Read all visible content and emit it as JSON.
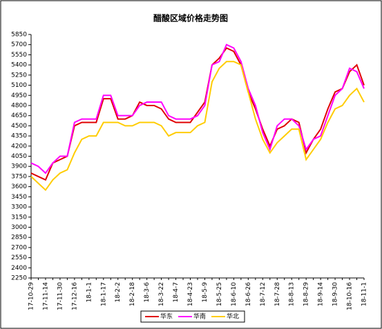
{
  "chart_data": {
    "type": "line",
    "title": "醋酸区域价格走势图",
    "categories": [
      "17-10-29",
      null,
      "17-11-14",
      null,
      "17-11-30",
      null,
      "17-12-16",
      null,
      "18-1-1",
      null,
      "18-1-17",
      null,
      "18-2-2",
      null,
      "18-2-18",
      null,
      "18-3-6",
      null,
      "18-3-22",
      null,
      "18-4-7",
      null,
      "18-4-23",
      null,
      "18-5-9",
      null,
      "18-5-25",
      null,
      "18-6-10",
      null,
      "18-6-26",
      null,
      "18-7-12",
      null,
      "18-7-28",
      null,
      "18-8-13",
      null,
      "18-8-29",
      null,
      "18-9-14",
      null,
      "18-9-30",
      null,
      "18-10-16",
      null,
      "18-11-1"
    ],
    "series": [
      {
        "name": "华东",
        "color": "#e00000",
        "values": [
          3800,
          3750,
          3700,
          3950,
          4000,
          4050,
          4500,
          4550,
          4550,
          4550,
          4900,
          4900,
          4600,
          4600,
          4650,
          4850,
          4800,
          4800,
          4750,
          4600,
          4550,
          4550,
          4550,
          4700,
          4850,
          5400,
          5500,
          5650,
          5600,
          5400,
          5000,
          4750,
          4450,
          4200,
          4450,
          4500,
          4600,
          4550,
          4100,
          4300,
          4450,
          4750,
          5000,
          5050,
          5300,
          5400,
          5100
        ]
      },
      {
        "name": "华南",
        "color": "#ff00ff",
        "values": [
          3950,
          3900,
          3800,
          3950,
          4050,
          4050,
          4550,
          4600,
          4600,
          4600,
          4950,
          4950,
          4650,
          4650,
          4650,
          4800,
          4850,
          4850,
          4850,
          4650,
          4600,
          4600,
          4600,
          4650,
          4800,
          5400,
          5450,
          5700,
          5650,
          5450,
          5050,
          4800,
          4400,
          4150,
          4500,
          4600,
          4600,
          4500,
          4150,
          4300,
          4350,
          4650,
          4950,
          5050,
          5350,
          5300,
          5050
        ]
      },
      {
        "name": "华北",
        "color": "#ffcc00",
        "values": [
          3750,
          3650,
          3550,
          3700,
          3800,
          3850,
          4100,
          4300,
          4350,
          4350,
          4550,
          4550,
          4550,
          4500,
          4500,
          4550,
          4550,
          4550,
          4500,
          4350,
          4400,
          4400,
          4400,
          4500,
          4550,
          5150,
          5350,
          5450,
          5450,
          5400,
          5000,
          4600,
          4300,
          4100,
          4250,
          4350,
          4450,
          4450,
          4000,
          4150,
          4300,
          4550,
          4750,
          4800,
          4950,
          5050,
          4850
        ]
      }
    ],
    "ylim": [
      2250,
      5850
    ],
    "yticks": [
      2250,
      2400,
      2550,
      2700,
      2850,
      3000,
      3150,
      3300,
      3450,
      3600,
      3750,
      3900,
      4050,
      4200,
      4350,
      4500,
      4650,
      4800,
      4950,
      5100,
      5250,
      5400,
      5550,
      5700,
      5850
    ],
    "grid": false
  }
}
